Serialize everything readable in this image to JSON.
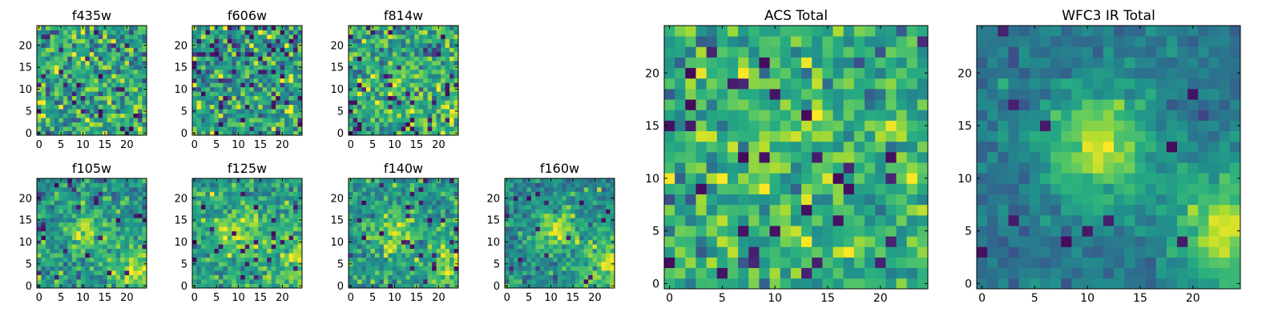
{
  "colormap": [
    "#440154",
    "#472c7a",
    "#3b528b",
    "#2c728e",
    "#21918c",
    "#28ae80",
    "#5ec962",
    "#addc30",
    "#fde725"
  ],
  "chart_data": [
    {
      "type": "heatmap",
      "title": "f435w",
      "size": 25,
      "xticks": [
        0,
        5,
        10,
        15,
        20
      ],
      "yticks": [
        0,
        5,
        10,
        15,
        20
      ],
      "structure": {
        "seed": 11,
        "noise_mean": 0.58,
        "noise_sd": 0.18,
        "dark_prob": 0.05,
        "blob": null,
        "corner": null
      }
    },
    {
      "type": "heatmap",
      "title": "f606w",
      "size": 25,
      "xticks": [
        0,
        5,
        10,
        15,
        20
      ],
      "yticks": [
        0,
        5,
        10,
        15,
        20
      ],
      "structure": {
        "seed": 23,
        "noise_mean": 0.55,
        "noise_sd": 0.19,
        "dark_prob": 0.06,
        "blob": null,
        "corner": null
      }
    },
    {
      "type": "heatmap",
      "title": "f814w",
      "size": 25,
      "xticks": [
        0,
        5,
        10,
        15,
        20
      ],
      "yticks": [
        0,
        5,
        10,
        15,
        20
      ],
      "structure": {
        "seed": 37,
        "noise_mean": 0.58,
        "noise_sd": 0.17,
        "dark_prob": 0.04,
        "blob": {
          "x": 11,
          "y": 12,
          "sigma": 4,
          "amp": 0.15
        },
        "corner": {
          "x": 24,
          "y": 4,
          "sigma": 5,
          "amp": 0.15
        }
      }
    },
    {
      "type": "heatmap",
      "title": "f105w",
      "size": 25,
      "xticks": [
        0,
        5,
        10,
        15,
        20
      ],
      "yticks": [
        0,
        5,
        10,
        15,
        20
      ],
      "structure": {
        "seed": 41,
        "noise_mean": 0.52,
        "noise_sd": 0.14,
        "dark_prob": 0.03,
        "blob": {
          "x": 11,
          "y": 12,
          "sigma": 3.5,
          "amp": 0.35
        },
        "corner": {
          "x": 24,
          "y": 4,
          "sigma": 4.5,
          "amp": 0.35
        }
      }
    },
    {
      "type": "heatmap",
      "title": "f125w",
      "size": 25,
      "xticks": [
        0,
        5,
        10,
        15,
        20
      ],
      "yticks": [
        0,
        5,
        10,
        15,
        20
      ],
      "structure": {
        "seed": 53,
        "noise_mean": 0.55,
        "noise_sd": 0.13,
        "dark_prob": 0.03,
        "blob": {
          "x": 10,
          "y": 12,
          "sigma": 4,
          "amp": 0.3
        },
        "corner": {
          "x": 24,
          "y": 5,
          "sigma": 4.5,
          "amp": 0.3
        }
      }
    },
    {
      "type": "heatmap",
      "title": "f140w",
      "size": 25,
      "xticks": [
        0,
        5,
        10,
        15,
        20
      ],
      "yticks": [
        0,
        5,
        10,
        15,
        20
      ],
      "structure": {
        "seed": 67,
        "noise_mean": 0.52,
        "noise_sd": 0.13,
        "dark_prob": 0.03,
        "blob": {
          "x": 10,
          "y": 12,
          "sigma": 3.5,
          "amp": 0.35
        },
        "corner": {
          "x": 24,
          "y": 5,
          "sigma": 4.5,
          "amp": 0.35
        }
      }
    },
    {
      "type": "heatmap",
      "title": "f160w",
      "size": 25,
      "xticks": [
        0,
        5,
        10,
        15,
        20
      ],
      "yticks": [
        0,
        5,
        10,
        15,
        20
      ],
      "structure": {
        "seed": 79,
        "noise_mean": 0.48,
        "noise_sd": 0.12,
        "dark_prob": 0.02,
        "blob": {
          "x": 11,
          "y": 13,
          "sigma": 3,
          "amp": 0.45
        },
        "corner": {
          "x": 24,
          "y": 5,
          "sigma": 4.5,
          "amp": 0.4
        }
      }
    },
    {
      "type": "heatmap",
      "title": "ACS Total",
      "size": 25,
      "xticks": [
        0,
        5,
        10,
        15,
        20
      ],
      "yticks": [
        0,
        5,
        10,
        15,
        20
      ],
      "structure": {
        "seed": 97,
        "noise_mean": 0.62,
        "noise_sd": 0.15,
        "dark_prob": 0.05,
        "blob": {
          "x": 12,
          "y": 13,
          "sigma": 4,
          "amp": 0.12
        },
        "corner": null
      }
    },
    {
      "type": "heatmap",
      "title": "WFC3 IR Total",
      "size": 25,
      "xticks": [
        0,
        5,
        10,
        15,
        20
      ],
      "yticks": [
        0,
        5,
        10,
        15,
        20
      ],
      "structure": {
        "seed": 101,
        "noise_mean": 0.4,
        "noise_sd": 0.07,
        "dark_prob": 0.02,
        "blob": {
          "x": 11,
          "y": 13,
          "sigma": 3.5,
          "amp": 0.5
        },
        "corner": {
          "x": 24,
          "y": 5,
          "sigma": 4,
          "amp": 0.5
        }
      }
    }
  ]
}
